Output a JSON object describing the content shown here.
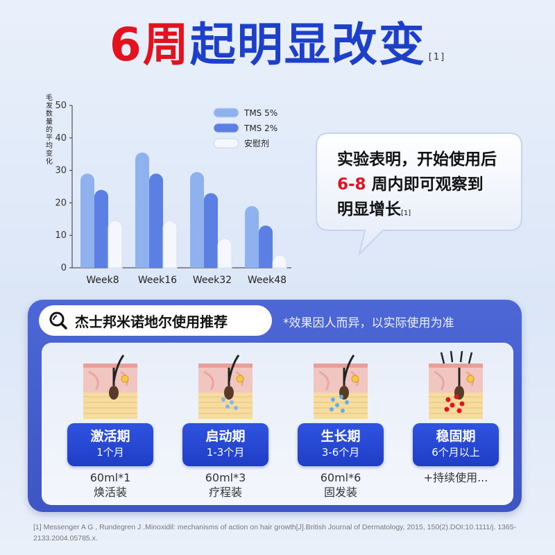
{
  "headline": {
    "part1": "6周",
    "part2": "起明显改变",
    "ref": "[1]"
  },
  "chart_data": {
    "type": "bar",
    "ylabel": "毛发数量的平均变化",
    "xlabel": "",
    "categories": [
      "Week8",
      "Week16",
      "Week32",
      "Week48"
    ],
    "ylim": [
      0,
      50
    ],
    "yticks": [
      "0",
      "10",
      "20",
      "30",
      "40",
      "50"
    ],
    "grid": false,
    "legend_position": "top-center",
    "series": [
      {
        "name": "TMS 5%",
        "values": [
          29,
          35.5,
          29.5,
          19
        ],
        "color": "#8fb2ef"
      },
      {
        "name": "TMS 2%",
        "values": [
          24,
          29,
          23,
          13
        ],
        "color": "#5b7fe2"
      },
      {
        "name": "安慰剂",
        "values": [
          14.5,
          14.5,
          9,
          3.5
        ],
        "color": "#f4f7fd"
      }
    ]
  },
  "bubble": {
    "line1": "实验表明，开始使用后",
    "line2_hl": "6-8",
    "line2_rest": "周内即可观察到",
    "line3": "明显增长",
    "ref": "[1]"
  },
  "usage": {
    "title": "杰士邦米诺地尔使用推荐",
    "note": "*效果因人而异，以实际使用为准",
    "stages": [
      {
        "name": "激活期",
        "duration": "1个月",
        "usage": "60ml*1",
        "pack": "焕活装",
        "icon": "hair-follicle-activation-icon"
      },
      {
        "name": "启动期",
        "duration": "1-3个月",
        "usage": "60ml*3",
        "pack": "疗程装",
        "icon": "hair-follicle-startup-icon"
      },
      {
        "name": "生长期",
        "duration": "3-6个月",
        "usage": "60ml*6",
        "pack": "固发装",
        "icon": "hair-follicle-growth-icon"
      },
      {
        "name": "稳固期",
        "duration": "6个月以上",
        "usage": "+持续使用...",
        "pack": "",
        "icon": "hair-follicle-stable-icon"
      }
    ]
  },
  "footnote": "[1] Messenger A G , Rundegren J .Minoxidil: mechanisms of action on hair growth[J].British Journal of Dermatology, 2015, 150(2).DOI:10.1111/j. 1365-2133.2004.05785.x."
}
